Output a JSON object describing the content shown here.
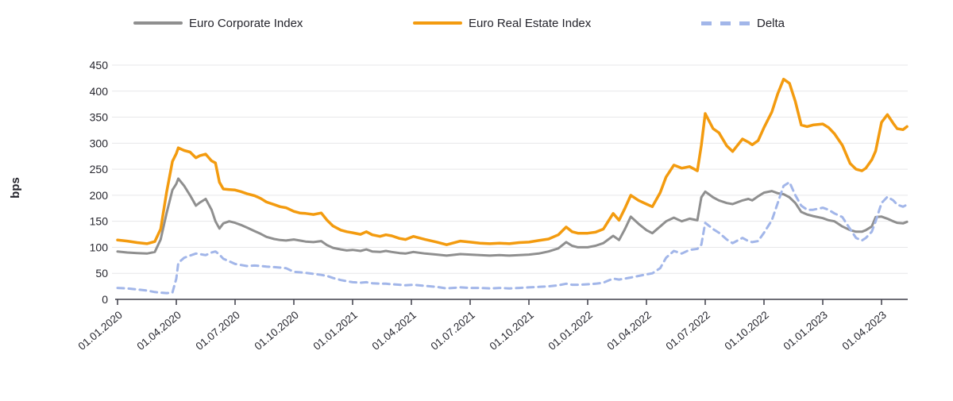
{
  "legend": {
    "items": [
      {
        "label": "Euro Corporate Index",
        "color": "#8F8F8F",
        "style": "solid"
      },
      {
        "label": "Euro Real Estate Index",
        "color": "#F39B0F",
        "style": "solid"
      },
      {
        "label": "Delta",
        "color": "#A2B6E9",
        "style": "dashed"
      }
    ]
  },
  "y_axis": {
    "title": "bps",
    "ticks": [
      0,
      50,
      100,
      150,
      200,
      250,
      300,
      350,
      400,
      450
    ]
  },
  "x_axis": {
    "labels": [
      "01.01.2020",
      "01.04.2020",
      "01.07.2020",
      "01.10.2020",
      "01.01.2021",
      "01.04.2021",
      "01.07.2021",
      "01.10.2021",
      "01.01.2022",
      "01.04.2022",
      "01.07.2022",
      "01.10.2022",
      "01.01.2023",
      "01.04.2023"
    ]
  },
  "colors": {
    "grid": "#E7E7E9",
    "axis": "#3E3E48",
    "tick_text": "#26262E"
  },
  "chart_data": {
    "type": "line",
    "title": "",
    "xlabel": "",
    "ylabel": "bps",
    "ylim": [
      0,
      450
    ],
    "xlim_months": [
      0,
      40.3
    ],
    "x_unit": "months since 01.01.2020",
    "x_tick_positions": [
      0,
      3,
      6,
      9,
      12,
      15,
      18,
      21,
      24,
      27,
      30,
      33,
      36,
      39
    ],
    "grid": "horizontal only",
    "legend_position": "top",
    "x": [
      0,
      0.5,
      1,
      1.5,
      1.9,
      2.2,
      2.5,
      2.8,
      3.0,
      3.1,
      3.4,
      3.7,
      4.0,
      4.2,
      4.5,
      4.8,
      5.0,
      5.2,
      5.4,
      5.7,
      6.0,
      6.3,
      6.6,
      7.0,
      7.3,
      7.6,
      8.0,
      8.3,
      8.6,
      9.0,
      9.3,
      9.6,
      10.0,
      10.4,
      10.7,
      11.0,
      11.4,
      11.7,
      12.0,
      12.4,
      12.7,
      13.0,
      13.4,
      13.7,
      14.0,
      14.4,
      14.7,
      15.1,
      15.7,
      16.3,
      16.8,
      17.5,
      18.0,
      18.5,
      19.0,
      19.5,
      20.0,
      20.5,
      21.0,
      21.5,
      22.0,
      22.5,
      22.9,
      23.2,
      23.5,
      24.0,
      24.4,
      24.8,
      25.3,
      25.6,
      25.9,
      26.2,
      26.6,
      27.0,
      27.3,
      27.7,
      28.0,
      28.4,
      28.8,
      29.2,
      29.6,
      29.8,
      30.0,
      30.4,
      30.7,
      31.1,
      31.4,
      31.9,
      32.2,
      32.4,
      32.7,
      33.0,
      33.4,
      33.7,
      34.0,
      34.3,
      34.6,
      34.9,
      35.2,
      35.5,
      36.0,
      36.3,
      36.6,
      37.0,
      37.4,
      37.7,
      38.0,
      38.2,
      38.5,
      38.7,
      39.0,
      39.3,
      39.6,
      39.8,
      40.1,
      40.3
    ],
    "series": [
      {
        "name": "Euro Corporate Index",
        "color": "#8F8F8F",
        "width": 3,
        "dash": null,
        "values": [
          92,
          90,
          89,
          88,
          91,
          115,
          165,
          210,
          222,
          232,
          218,
          200,
          180,
          186,
          193,
          172,
          150,
          136,
          146,
          150,
          147,
          143,
          138,
          131,
          126,
          120,
          116,
          114,
          113,
          115,
          113,
          111,
          110,
          112,
          104,
          99,
          96,
          94,
          95,
          93,
          96,
          92,
          91,
          93,
          91,
          89,
          88,
          91,
          88,
          86,
          84,
          87,
          86,
          85,
          84,
          85,
          84,
          85,
          86,
          88,
          92,
          98,
          110,
          103,
          100,
          100,
          103,
          108,
          122,
          114,
          135,
          159,
          145,
          133,
          127,
          140,
          150,
          157,
          150,
          155,
          152,
          196,
          207,
          196,
          190,
          185,
          183,
          190,
          193,
          190,
          198,
          205,
          208,
          204,
          202,
          196,
          185,
          168,
          163,
          160,
          156,
          152,
          150,
          140,
          133,
          130,
          130,
          133,
          140,
          158,
          159,
          155,
          150,
          147,
          146,
          149
        ]
      },
      {
        "name": "Euro Real Estate Index",
        "color": "#F39B0F",
        "width": 3.5,
        "dash": null,
        "values": [
          114,
          112,
          109,
          107,
          111,
          135,
          205,
          265,
          280,
          291,
          286,
          283,
          272,
          276,
          279,
          266,
          262,
          225,
          212,
          211,
          210,
          207,
          203,
          199,
          194,
          187,
          182,
          178,
          176,
          169,
          166,
          165,
          163,
          166,
          152,
          141,
          133,
          130,
          128,
          125,
          130,
          124,
          121,
          124,
          122,
          117,
          115,
          121,
          115,
          110,
          105,
          112,
          110,
          108,
          107,
          108,
          107,
          109,
          110,
          113,
          116,
          124,
          139,
          130,
          127,
          127,
          129,
          135,
          165,
          152,
          175,
          200,
          190,
          183,
          178,
          205,
          235,
          258,
          252,
          255,
          247,
          296,
          357,
          328,
          320,
          295,
          284,
          308,
          302,
          297,
          305,
          330,
          360,
          395,
          423,
          415,
          380,
          335,
          332,
          335,
          337,
          330,
          318,
          296,
          261,
          250,
          247,
          252,
          268,
          285,
          340,
          355,
          338,
          328,
          326,
          332
        ]
      },
      {
        "name": "Delta",
        "color": "#A2B6E9",
        "width": 3,
        "dash": [
          8,
          6
        ],
        "values": [
          22,
          21,
          19,
          17,
          14,
          13,
          12,
          13,
          40,
          70,
          80,
          84,
          88,
          87,
          85,
          90,
          92,
          86,
          78,
          73,
          68,
          66,
          64,
          65,
          64,
          63,
          62,
          61,
          60,
          53,
          52,
          51,
          49,
          47,
          45,
          41,
          37,
          35,
          33,
          32,
          33,
          31,
          30,
          30,
          29,
          28,
          27,
          28,
          26,
          24,
          21,
          23,
          22,
          22,
          21,
          22,
          21,
          22,
          23,
          24,
          25,
          27,
          30,
          28,
          28,
          29,
          30,
          32,
          40,
          38,
          40,
          42,
          45,
          48,
          50,
          60,
          80,
          93,
          88,
          95,
          97,
          105,
          147,
          135,
          128,
          115,
          108,
          118,
          112,
          110,
          112,
          128,
          152,
          185,
          218,
          225,
          200,
          180,
          172,
          172,
          176,
          172,
          165,
          158,
          135,
          118,
          113,
          118,
          130,
          150,
          185,
          197,
          190,
          182,
          178,
          182
        ]
      }
    ]
  }
}
